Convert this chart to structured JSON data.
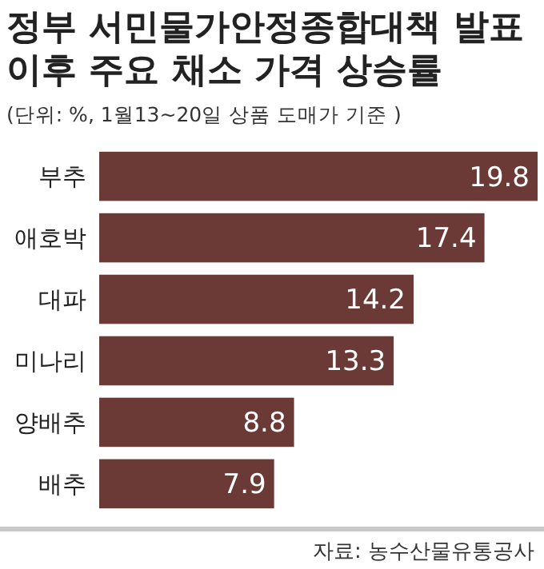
{
  "chart_data": {
    "type": "bar",
    "orientation": "horizontal",
    "title": "정부 서민물가안정종합대책 발표 이후 주요 채소 가격 상승률",
    "subtitle": "(단위: %, 1월13~20일 상품 도매가 기준 )",
    "categories": [
      "부추",
      "애호박",
      "대파",
      "미나리",
      "양배추",
      "배추"
    ],
    "values": [
      19.8,
      17.4,
      14.2,
      13.3,
      8.8,
      7.9
    ],
    "color": "#6b3a36",
    "data_labels": true,
    "annotations": [
      "자료: 농수산물유통공사"
    ]
  }
}
